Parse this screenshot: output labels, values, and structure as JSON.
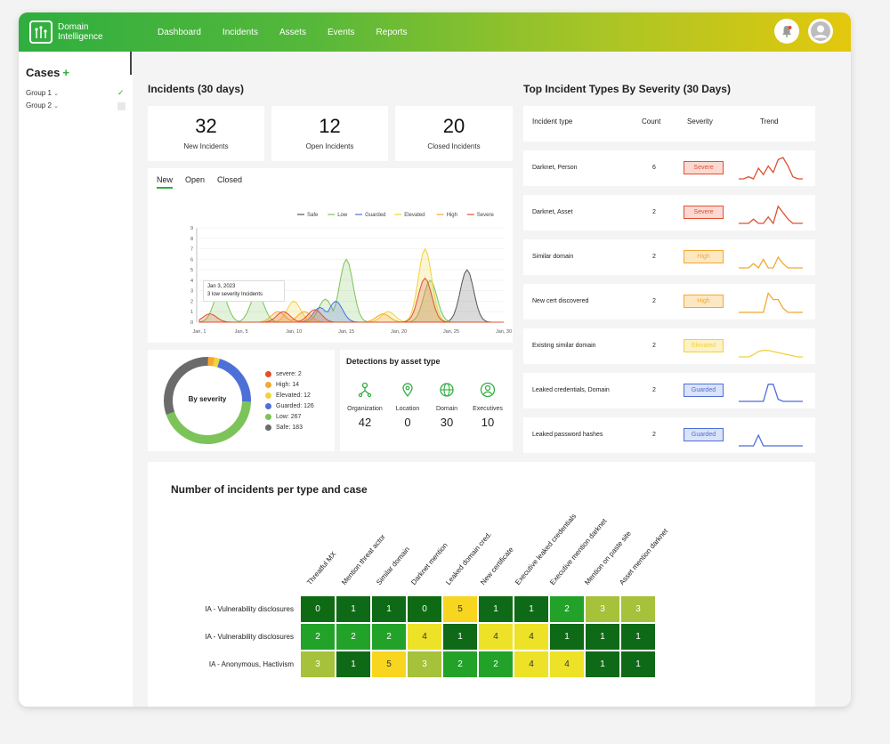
{
  "app": {
    "logo_line1": "Domain",
    "logo_line2": "Intelligence",
    "nav": [
      "Dashboard",
      "Incidents",
      "Assets",
      "Events",
      "Reports"
    ]
  },
  "sidebar": {
    "title": "Cases",
    "plus": "+",
    "groups": [
      {
        "label": "Group 1",
        "checked": true
      },
      {
        "label": "Group 2",
        "checked": false
      }
    ]
  },
  "incidents": {
    "title": "Incidents (30 days)",
    "stats": [
      {
        "value": "32",
        "label": "New Incidents"
      },
      {
        "value": "12",
        "label": "Open Incidents"
      },
      {
        "value": "20",
        "label": "Closed Incidents"
      }
    ],
    "tabs": [
      "New",
      "Open",
      "Closed"
    ],
    "tooltip_date": "Jan 3, 2023",
    "tooltip_text": "3 low severity Incidents"
  },
  "chart_data": {
    "type": "area",
    "x": [
      "Jan, 1",
      "Jan, 5",
      "Jan, 10",
      "Jan, 15",
      "Jan, 20",
      "Jan, 25",
      "Jan, 30"
    ],
    "ylim": [
      0,
      9
    ],
    "yticks": [
      0,
      1,
      2,
      3,
      4,
      5,
      6,
      7,
      8,
      9
    ],
    "series": [
      {
        "name": "Safe",
        "color": "#555555",
        "peaks": [
          [
            26.5,
            5
          ]
        ]
      },
      {
        "name": "Low",
        "color": "#7cc35a",
        "peaks": [
          [
            3,
            3
          ],
          [
            6.5,
            2.8
          ],
          [
            13,
            2.2
          ],
          [
            15,
            6
          ],
          [
            23,
            4
          ]
        ]
      },
      {
        "name": "Guarded",
        "color": "#4d6fd8",
        "peaks": [
          [
            12.5,
            1.4
          ],
          [
            14,
            2
          ]
        ]
      },
      {
        "name": "Elevated",
        "color": "#f1d23b",
        "peaks": [
          [
            10,
            2
          ],
          [
            19,
            1
          ],
          [
            22.5,
            7
          ]
        ]
      },
      {
        "name": "High",
        "color": "#f3a830",
        "peaks": [
          [
            8.5,
            1
          ],
          [
            11,
            1
          ],
          [
            18.5,
            0.8
          ]
        ]
      },
      {
        "name": "Severe",
        "color": "#e0502f",
        "peaks": [
          [
            2,
            0.8
          ],
          [
            9,
            1
          ],
          [
            12,
            1.2
          ],
          [
            22.5,
            4.2
          ]
        ]
      }
    ]
  },
  "severity": {
    "center_label": "By severity",
    "items": [
      {
        "label": "severe: 2",
        "value": 2,
        "color": "#e0502f"
      },
      {
        "label": "High: 14",
        "value": 14,
        "color": "#f3a830"
      },
      {
        "label": "Elevated: 12",
        "value": 12,
        "color": "#f1d23b"
      },
      {
        "label": "Guarded: 126",
        "value": 126,
        "color": "#4d6fd8"
      },
      {
        "label": "Low: 267",
        "value": 267,
        "color": "#7cc35a"
      },
      {
        "label": "Safe: 183",
        "value": 183,
        "color": "#6b6b6b"
      }
    ]
  },
  "detections": {
    "title": "Detections by asset type",
    "items": [
      {
        "label": "Organization",
        "value": "42",
        "icon": "organization-icon"
      },
      {
        "label": "Location",
        "value": "0",
        "icon": "location-icon"
      },
      {
        "label": "Domain",
        "value": "30",
        "icon": "globe-icon"
      },
      {
        "label": "Executives",
        "value": "10",
        "icon": "person-icon"
      }
    ]
  },
  "top_types": {
    "title": "Top Incident Types By Severity (30 Days)",
    "headers": [
      "Incident type",
      "Count",
      "Severity",
      "Trend"
    ],
    "rows": [
      {
        "type": "Darknet, Person",
        "count": "6",
        "severity": "Severe",
        "color": "#e0502f",
        "bg": "#fbd9d2",
        "trend": [
          0,
          0,
          0.1,
          0,
          0.5,
          0.2,
          0.6,
          0.3,
          0.9,
          1,
          0.6,
          0.1,
          0,
          0
        ]
      },
      {
        "type": "Darknet, Asset",
        "count": "2",
        "severity": "Severe",
        "color": "#e0502f",
        "bg": "#fbd9d2",
        "trend": [
          0,
          0,
          0,
          0.2,
          0,
          0,
          0.3,
          0,
          0.8,
          0.5,
          0.2,
          0,
          0,
          0
        ]
      },
      {
        "type": "Similar domain",
        "count": "2",
        "severity": "High",
        "color": "#f3a830",
        "bg": "#fde8c4",
        "trend": [
          0,
          0,
          0,
          0.2,
          0,
          0.4,
          0,
          0,
          0.5,
          0.2,
          0,
          0,
          0,
          0
        ]
      },
      {
        "type": "New cert discovered",
        "count": "2",
        "severity": "High",
        "color": "#f3a830",
        "bg": "#fde8c4",
        "trend": [
          0,
          0,
          0,
          0,
          0,
          0,
          0.9,
          0.6,
          0.6,
          0.2,
          0,
          0,
          0,
          0
        ]
      },
      {
        "type": "Existing similar domain",
        "count": "2",
        "severity": "Elevated",
        "color": "#f1d23b",
        "bg": "#fcf2c6",
        "trend": [
          0,
          0,
          0,
          0.1,
          0.25,
          0.3,
          0.3,
          0.25,
          0.2,
          0.15,
          0.1,
          0.05,
          0,
          0
        ]
      },
      {
        "type": "Leaked credentials, Domain",
        "count": "2",
        "severity": "Guarded",
        "color": "#4d6fd8",
        "bg": "#dbe3f8",
        "trend": [
          0,
          0,
          0,
          0,
          0,
          0,
          0.8,
          0.8,
          0.1,
          0,
          0,
          0,
          0,
          0
        ]
      },
      {
        "type": "Leaked password hashes",
        "count": "2",
        "severity": "Guarded",
        "color": "#4d6fd8",
        "bg": "#dbe3f8",
        "trend": [
          0,
          0,
          0,
          0,
          0.5,
          0,
          0,
          0,
          0,
          0,
          0,
          0,
          0,
          0
        ]
      }
    ]
  },
  "heatmap": {
    "title": "Number of incidents per type and case",
    "columns": [
      "Threatful MX",
      "Mention threat actor",
      "Similar domain",
      "Darknet mention",
      "Leaked domain cred.",
      "New certificate",
      "Executive leaked credentials",
      "Executive mention darknet",
      "Mention on paste site",
      "Asset mention darknet"
    ],
    "rows": [
      {
        "label": "IA - Vulnerability disclosures",
        "values": [
          "0",
          "1",
          "1",
          "0",
          "5",
          "1",
          "1",
          "2",
          "3",
          "3"
        ]
      },
      {
        "label": "IA - Vulnerability disclosures",
        "values": [
          "2",
          "2",
          "2",
          "4",
          "1",
          "4",
          "4",
          "1",
          "1",
          "1"
        ]
      },
      {
        "label": "IA - Anonymous, Hactivism",
        "values": [
          "3",
          "1",
          "5",
          "3",
          "2",
          "2",
          "4",
          "4",
          "1",
          "1"
        ]
      }
    ],
    "colors": {
      "0": "#0e6b14",
      "1": "#0f6a17",
      "2": "#23a22a",
      "3": "#a6c13a",
      "4": "#ede227",
      "5": "#f8d51f"
    },
    "text_colors": {
      "0": "#fff",
      "1": "#fff",
      "2": "#fff",
      "3": "#fff",
      "4": "#333",
      "5": "#333"
    }
  }
}
